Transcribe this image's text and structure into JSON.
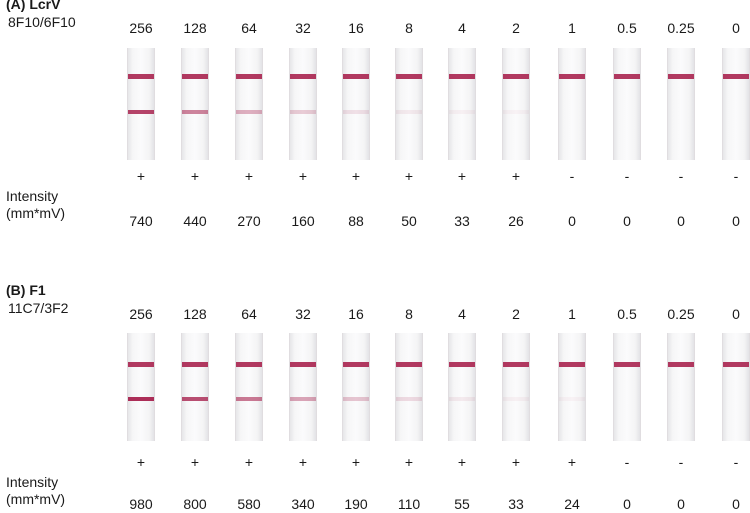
{
  "panels": [
    {
      "title": "(A) LcrV",
      "subtitle": "8F10/6F10",
      "concentrations": [
        "256",
        "128",
        "64",
        "32",
        "16",
        "8",
        "4",
        "2",
        "1",
        "0.5",
        "0.25",
        "0"
      ],
      "signs": [
        "+",
        "+",
        "+",
        "+",
        "+",
        "+",
        "+",
        "+",
        "-",
        "-",
        "-",
        "-"
      ],
      "intensity_label_line1": "Intensity",
      "intensity_label_line2": "(mm*mV)",
      "intensities": [
        "740",
        "440",
        "270",
        "160",
        "88",
        "50",
        "33",
        "26",
        "0",
        "0",
        "0",
        "0"
      ],
      "test_line_levels": [
        0.85,
        0.55,
        0.35,
        0.22,
        0.12,
        0.08,
        0.05,
        0.04,
        0,
        0,
        0,
        0
      ],
      "band_color": "#a8234f"
    },
    {
      "title": "(B) F1",
      "subtitle": "11C7/3F2",
      "concentrations": [
        "256",
        "128",
        "64",
        "32",
        "16",
        "8",
        "4",
        "2",
        "1",
        "0.5",
        "0.25",
        "0"
      ],
      "signs": [
        "+",
        "+",
        "+",
        "+",
        "+",
        "+",
        "+",
        "+",
        "+",
        "-",
        "-",
        "-"
      ],
      "intensity_label_line1": "Intensity",
      "intensity_label_line2": "(mm*mV)",
      "intensities": [
        "980",
        "800",
        "580",
        "340",
        "190",
        "110",
        "55",
        "33",
        "24",
        "0",
        "0",
        "0"
      ],
      "test_line_levels": [
        0.95,
        0.8,
        0.6,
        0.4,
        0.25,
        0.15,
        0.08,
        0.05,
        0.04,
        0,
        0,
        0
      ],
      "band_color": "#a8234f"
    }
  ]
}
